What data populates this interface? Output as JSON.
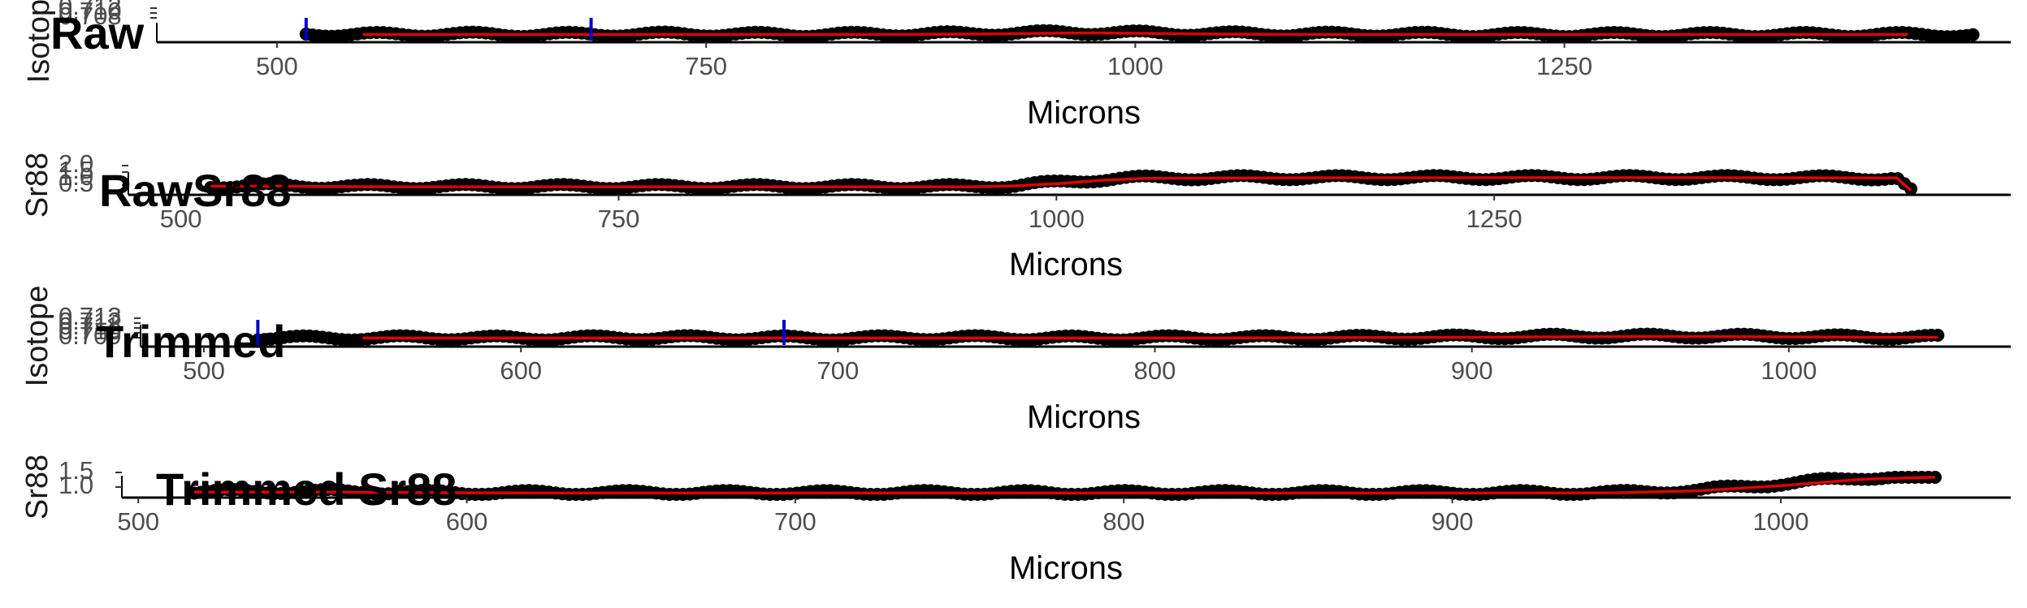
{
  "colors": {
    "points": "#000000",
    "smooth": "#e00000",
    "marker": "#0000cc",
    "axis": "#000000"
  },
  "chart_data": [
    {
      "id": "raw-isotope",
      "type": "scatter",
      "title": "Raw",
      "xlabel": "Microns",
      "ylabel": "Isotope",
      "xlim": [
        430,
        1510
      ],
      "ylim": [
        0.7095,
        0.7135
      ],
      "xticks": [
        500,
        750,
        1000,
        1250
      ],
      "yticks": [
        "0.708",
        "0.710",
        "0.712"
      ],
      "x_range": [
        517,
        1488
      ],
      "series": [
        {
          "name": "Observed",
          "style": "points",
          "x": [
            517,
            560,
            600,
            650,
            700,
            750,
            800,
            850,
            900,
            930,
            960,
            980,
            1000,
            1050,
            1100,
            1150,
            1200,
            1250,
            1300,
            1350,
            1400,
            1450,
            1488
          ],
          "y": [
            0.7107,
            0.7106,
            0.7107,
            0.7106,
            0.7107,
            0.7107,
            0.7106,
            0.7107,
            0.7108,
            0.711,
            0.7111,
            0.7111,
            0.711,
            0.7108,
            0.7107,
            0.7107,
            0.7106,
            0.7106,
            0.7106,
            0.7106,
            0.7106,
            0.7106,
            0.7105
          ]
        },
        {
          "name": "Smoothed",
          "style": "line",
          "x": [
            550,
            600,
            650,
            700,
            750,
            800,
            850,
            900,
            950,
            975,
            1000,
            1050,
            1100,
            1150,
            1200,
            1250,
            1300,
            1350,
            1400,
            1450
          ],
          "y": [
            0.7106,
            0.7106,
            0.7106,
            0.7106,
            0.7106,
            0.7106,
            0.7106,
            0.7107,
            0.7109,
            0.711,
            0.7109,
            0.7107,
            0.7106,
            0.7106,
            0.7106,
            0.7106,
            0.7106,
            0.7106,
            0.7106,
            0.7106
          ]
        }
      ],
      "vlines": [
        517,
        683
      ]
    },
    {
      "id": "raw-sr88",
      "type": "scatter",
      "title": "RawSr88",
      "xlabel": "Microns",
      "ylabel": "Sr88",
      "xlim": [
        470,
        1545
      ],
      "ylim": [
        0.5,
        2.25
      ],
      "xticks": [
        500,
        750,
        1000,
        1250
      ],
      "yticks": [
        "0.5",
        "1.0",
        "1.5",
        "2.0"
      ],
      "x_range": [
        517,
        1488
      ],
      "series": [
        {
          "name": "Observed",
          "style": "points",
          "x": [
            517,
            540,
            560,
            600,
            650,
            700,
            750,
            800,
            850,
            900,
            950,
            975,
            1000,
            1025,
            1035,
            1050,
            1100,
            1150,
            1200,
            1250,
            1300,
            1350,
            1400,
            1450,
            1480,
            1485,
            1488
          ],
          "y": [
            1.0,
            1.05,
            1.0,
            0.95,
            0.95,
            0.95,
            0.95,
            0.95,
            0.95,
            0.95,
            0.95,
            1.05,
            1.3,
            1.6,
            1.7,
            1.72,
            1.75,
            1.75,
            1.75,
            1.76,
            1.76,
            1.76,
            1.75,
            1.74,
            1.72,
            1.0,
            0.6
          ]
        },
        {
          "name": "Smoothed",
          "style": "line",
          "x": [
            517,
            560,
            600,
            650,
            700,
            750,
            800,
            850,
            900,
            950,
            975,
            1000,
            1025,
            1050,
            1100,
            1150,
            1200,
            1250,
            1300,
            1350,
            1400,
            1450,
            1480,
            1485,
            1488
          ],
          "y": [
            0.98,
            0.98,
            0.94,
            0.93,
            0.93,
            0.93,
            0.93,
            0.93,
            0.93,
            0.93,
            1.0,
            1.2,
            1.5,
            1.68,
            1.72,
            1.74,
            1.74,
            1.75,
            1.75,
            1.75,
            1.74,
            1.73,
            1.72,
            1.0,
            0.6
          ]
        }
      ],
      "vlines": []
    },
    {
      "id": "trimmed-isotope",
      "type": "scatter",
      "title": "Trimmed",
      "xlabel": "Microns",
      "ylabel": "Isotope",
      "xlim": [
        480,
        1070
      ],
      "ylim": [
        0.7092,
        0.7141
      ],
      "xticks": [
        500,
        600,
        700,
        800,
        900,
        1000
      ],
      "yticks": [
        "0.709",
        "0.710",
        "0.711",
        "0.712",
        "0.713"
      ],
      "x_range": [
        517,
        1047
      ],
      "series": [
        {
          "name": "Observed",
          "style": "points",
          "x": [
            517,
            540,
            570,
            600,
            630,
            660,
            690,
            720,
            750,
            780,
            810,
            840,
            870,
            900,
            930,
            960,
            980,
            1000,
            1020,
            1047
          ],
          "y": [
            0.7107,
            0.7106,
            0.7107,
            0.7106,
            0.7107,
            0.7107,
            0.7106,
            0.7107,
            0.7107,
            0.7106,
            0.7107,
            0.7107,
            0.7108,
            0.7109,
            0.7111,
            0.7111,
            0.7111,
            0.711,
            0.7109,
            0.7108
          ]
        },
        {
          "name": "Smoothed",
          "style": "line",
          "x": [
            550,
            600,
            650,
            700,
            750,
            800,
            850,
            900,
            925,
            950,
            975,
            1000,
            1025,
            1047
          ],
          "y": [
            0.7106,
            0.7106,
            0.7106,
            0.7106,
            0.7106,
            0.7106,
            0.7107,
            0.7108,
            0.7109,
            0.711,
            0.711,
            0.7109,
            0.7108,
            0.7108
          ]
        }
      ],
      "vlines": [
        517,
        683
      ]
    },
    {
      "id": "trimmed-sr88",
      "type": "scatter",
      "title": "Trimmed Sr88",
      "xlabel": "Microns",
      "ylabel": "Sr88",
      "xlim": [
        495,
        1070
      ],
      "ylim": [
        0.88,
        1.62
      ],
      "xticks": [
        500,
        600,
        700,
        800,
        900,
        1000
      ],
      "yticks": [
        "1.0",
        "1.5"
      ],
      "x_range": [
        517,
        1047
      ],
      "series": [
        {
          "name": "Observed",
          "style": "points",
          "x": [
            517,
            550,
            580,
            600,
            650,
            700,
            750,
            800,
            850,
            900,
            950,
            975,
            1000,
            1025,
            1047
          ],
          "y": [
            0.98,
            1.0,
            0.97,
            0.95,
            0.95,
            0.95,
            0.95,
            0.95,
            0.95,
            0.95,
            0.95,
            1.05,
            1.3,
            1.55,
            1.6
          ]
        },
        {
          "name": "Smoothed",
          "style": "line",
          "x": [
            517,
            560,
            600,
            650,
            700,
            750,
            800,
            850,
            900,
            950,
            975,
            1000,
            1025,
            1047
          ],
          "y": [
            0.97,
            0.97,
            0.94,
            0.93,
            0.93,
            0.93,
            0.93,
            0.93,
            0.93,
            0.94,
            1.02,
            1.22,
            1.48,
            1.56
          ]
        }
      ],
      "vlines": []
    }
  ]
}
